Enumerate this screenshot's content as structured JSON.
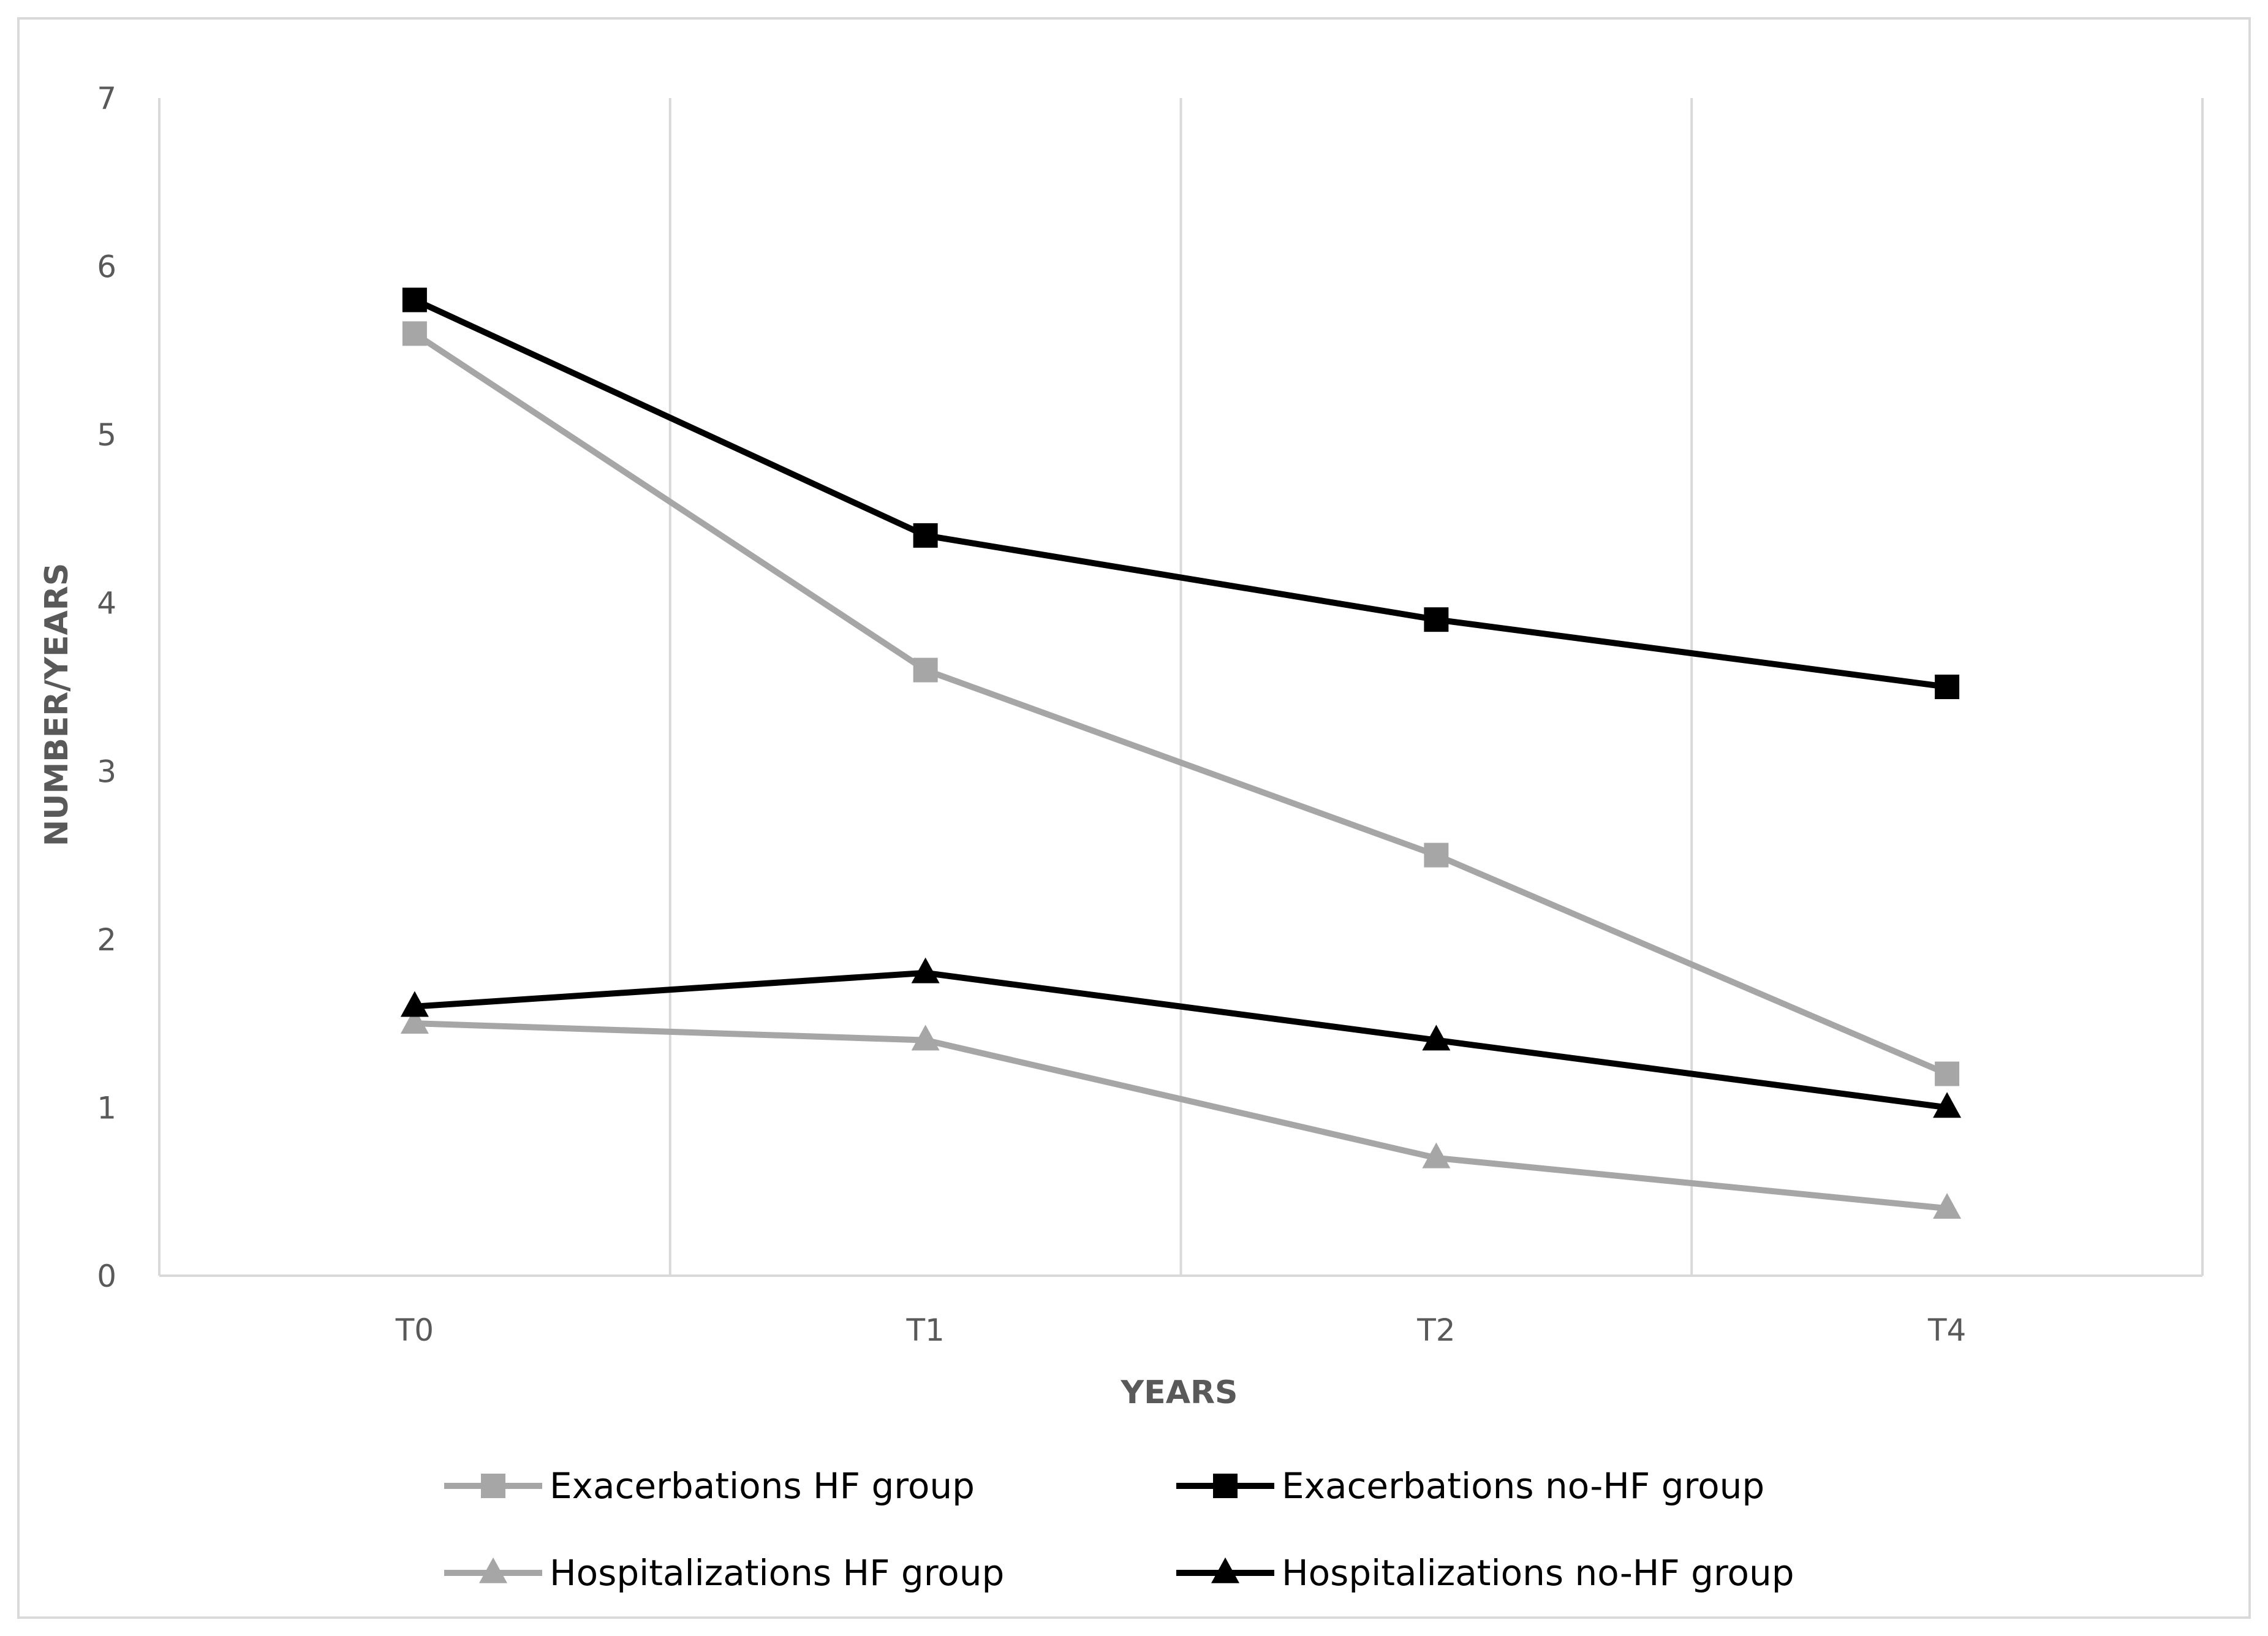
{
  "chart_data": {
    "type": "line",
    "title": "",
    "xlabel": "YEARS",
    "ylabel": "NUMBER/YEARS",
    "ylim": [
      0,
      7
    ],
    "yticks": [
      "0",
      "1",
      "2",
      "3",
      "4",
      "5",
      "6",
      "7"
    ],
    "categories": [
      "T0",
      "T1",
      "T2",
      "T4"
    ],
    "grid": "vertical",
    "legend_position": "bottom",
    "series": [
      {
        "name": "Exacerbations HF group",
        "values": [
          5.6,
          3.6,
          2.5,
          1.2
        ],
        "color": "#A6A6A6",
        "marker": "square"
      },
      {
        "name": "Exacerbations no-HF group",
        "values": [
          5.8,
          4.4,
          3.9,
          3.5
        ],
        "color": "#000000",
        "marker": "square"
      },
      {
        "name": "Hospitalizations HF group",
        "values": [
          1.5,
          1.4,
          0.7,
          0.4
        ],
        "color": "#A6A6A6",
        "marker": "triangle"
      },
      {
        "name": "Hospitalizations no-HF group",
        "values": [
          1.6,
          1.8,
          1.4,
          1.0
        ],
        "color": "#000000",
        "marker": "triangle"
      }
    ]
  }
}
